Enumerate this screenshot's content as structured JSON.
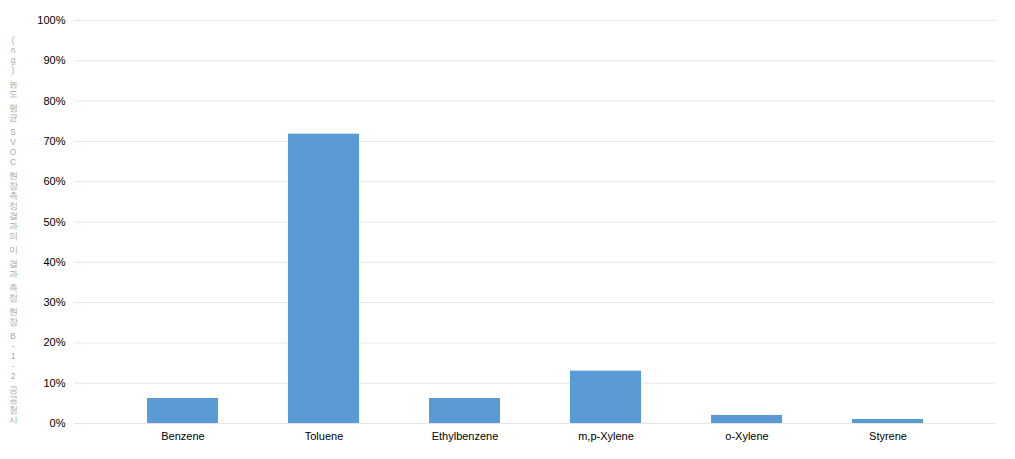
{
  "chart_data": {
    "type": "bar",
    "ylabel": "(ng) 농도 평균 5VOC 현장측정결과의 이 결과 측정 현장 B-1-2 공공청사",
    "categories": [
      "Benzene",
      "Toluene",
      "Ethylbenzene",
      "m,p-Xylene",
      "o-Xylene",
      "Styrene"
    ],
    "values": [
      0.062,
      0.718,
      0.062,
      0.13,
      0.02,
      0.01
    ],
    "color": "#5B9BD5",
    "ylim": [
      0,
      1.0
    ],
    "yticks": [
      {
        "value": 0.0,
        "label": "0%"
      },
      {
        "value": 0.1,
        "label": "10%"
      },
      {
        "value": 0.2,
        "label": "20%"
      },
      {
        "value": 0.3,
        "label": "30%"
      },
      {
        "value": 0.4,
        "label": "40%"
      },
      {
        "value": 0.5,
        "label": "50%"
      },
      {
        "value": 0.6,
        "label": "60%"
      },
      {
        "value": 0.7,
        "label": "70%"
      },
      {
        "value": 0.8,
        "label": "80%"
      },
      {
        "value": 0.9,
        "label": "90%"
      },
      {
        "value": 1.0,
        "label": "100%"
      }
    ],
    "grid": true
  }
}
